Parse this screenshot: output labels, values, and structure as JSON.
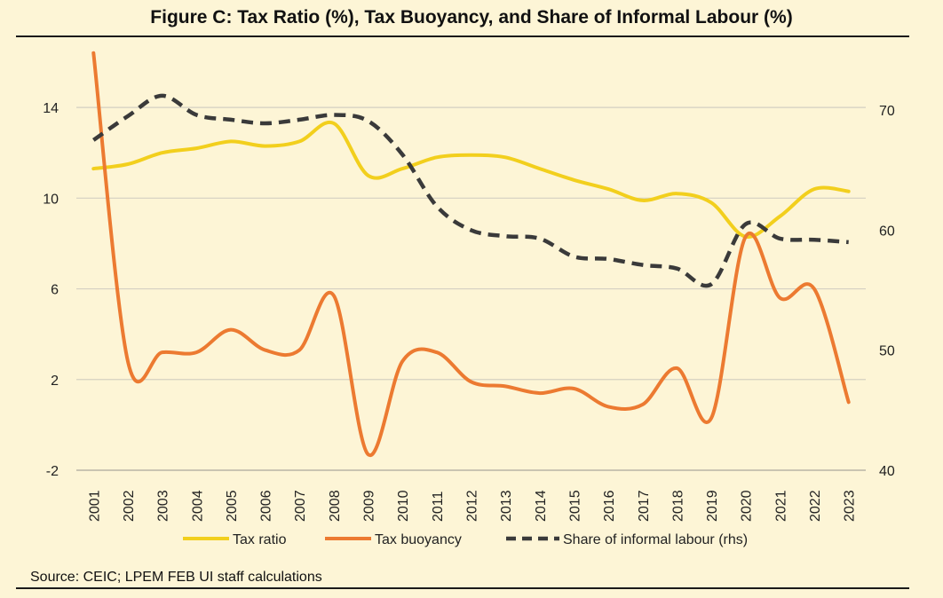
{
  "title": "Figure C: Tax Ratio (%), Tax Buoyancy, and Share of Informal Labour (%)",
  "source": "Source: CEIC; LPEM FEB UI staff calculations",
  "colors": {
    "background": "#fdf5d6",
    "tax_ratio": "#f2cf1d",
    "tax_buoyancy": "#ec7a31",
    "informal_labour": "#3a3a3a",
    "grid": "#d4d0c2"
  },
  "chart_data": {
    "type": "line",
    "title": "Figure C: Tax Ratio (%), Tax Buoyancy, and Share of Informal Labour (%)",
    "categories": [
      "2001",
      "2002",
      "2003",
      "2004",
      "2005",
      "2006",
      "2007",
      "2008",
      "2009",
      "2010",
      "2011",
      "2012",
      "2013",
      "2014",
      "2015",
      "2016",
      "2017",
      "2018",
      "2019",
      "2020",
      "2021",
      "2022",
      "2023"
    ],
    "y_left": {
      "ylim": [
        -2,
        16
      ],
      "ticks": [
        -2,
        2,
        6,
        10,
        14
      ],
      "tick_labels": [
        "-2",
        "2",
        "6",
        "10",
        "14"
      ]
    },
    "y_right": {
      "ylim": [
        40,
        74
      ],
      "ticks": [
        40,
        50,
        60,
        70
      ],
      "tick_labels": [
        "40",
        "50",
        "60",
        "70"
      ]
    },
    "grid": true,
    "legend_position": "bottom",
    "series": [
      {
        "name": "Tax ratio",
        "axis": "left",
        "style": "solid",
        "values": [
          11.3,
          11.5,
          12.0,
          12.2,
          12.5,
          12.3,
          12.5,
          13.3,
          11.0,
          11.3,
          11.8,
          11.9,
          11.8,
          11.3,
          10.8,
          10.4,
          9.9,
          10.2,
          9.8,
          8.3,
          9.2,
          10.4,
          10.3
        ]
      },
      {
        "name": "Tax buoyancy",
        "axis": "left",
        "style": "solid",
        "values": [
          16.4,
          2.8,
          3.2,
          3.2,
          4.2,
          3.3,
          3.3,
          5.7,
          -1.3,
          2.8,
          3.2,
          1.9,
          1.7,
          1.4,
          1.6,
          0.8,
          0.9,
          2.5,
          0.3,
          8.3,
          5.6,
          6.0,
          1.0
        ]
      },
      {
        "name": "Share of informal labour (rhs)",
        "axis": "right",
        "style": "dashed",
        "values": [
          67.5,
          69.5,
          71.2,
          69.6,
          69.2,
          68.9,
          69.2,
          69.6,
          69.1,
          66.3,
          62.0,
          60.0,
          59.5,
          59.3,
          57.8,
          57.6,
          57.1,
          56.8,
          55.5,
          60.5,
          59.3,
          59.2,
          59.0
        ]
      }
    ]
  }
}
